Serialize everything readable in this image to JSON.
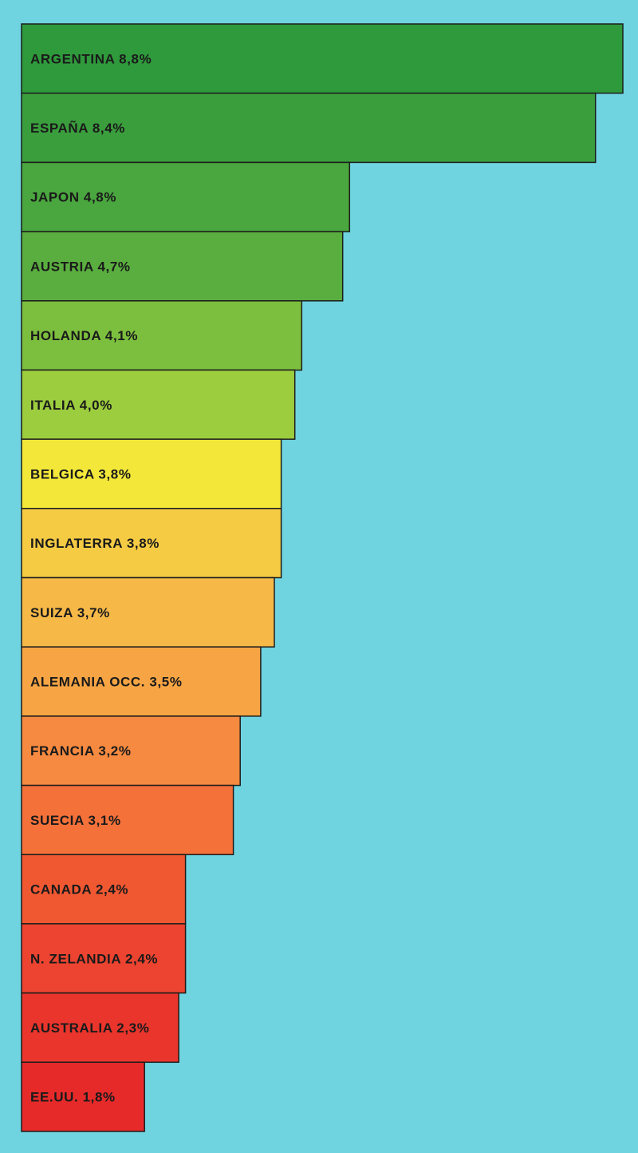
{
  "chart_data": {
    "type": "bar",
    "orientation": "horizontal",
    "categories": [
      "ARGENTINA",
      "ESPAÑA",
      "JAPON",
      "AUSTRIA",
      "HOLANDA",
      "ITALIA",
      "BELGICA",
      "INGLATERRA",
      "SUIZA",
      "ALEMANIA OCC.",
      "FRANCIA",
      "SUECIA",
      "CANADA",
      "N. ZELANDIA",
      "AUSTRALIA",
      "EE.UU."
    ],
    "values": [
      8.8,
      8.4,
      4.8,
      4.7,
      4.1,
      4.0,
      3.8,
      3.8,
      3.7,
      3.5,
      3.2,
      3.1,
      2.4,
      2.4,
      2.3,
      1.8
    ],
    "labels": [
      "ARGENTINA 8,8%",
      "ESPAÑA 8,4%",
      "JAPON 4,8%",
      "AUSTRIA 4,7%",
      "HOLANDA 4,1%",
      "ITALIA 4,0%",
      "BELGICA 3,8%",
      "INGLATERRA 3,8%",
      "SUIZA 3,7%",
      "ALEMANIA OCC. 3,5%",
      "FRANCIA 3,2%",
      "SUECIA 3,1%",
      "CANADA 2,4%",
      "N. ZELANDIA 2,4%",
      "AUSTRALIA 2,3%",
      "EE.UU. 1,8%"
    ],
    "xlim": [
      0,
      8.8
    ],
    "grid": false,
    "background_color": "#6fd4e0",
    "bar_colors": [
      "#2f9a3c",
      "#3a9e3d",
      "#4aa63e",
      "#5aae3f",
      "#7cbf3e",
      "#9ccd3e",
      "#f3e83a",
      "#f5cb44",
      "#f6b948",
      "#f7a544",
      "#f68a40",
      "#f4713a",
      "#f05832",
      "#ec4430",
      "#e9352c",
      "#e62a2a"
    ]
  }
}
